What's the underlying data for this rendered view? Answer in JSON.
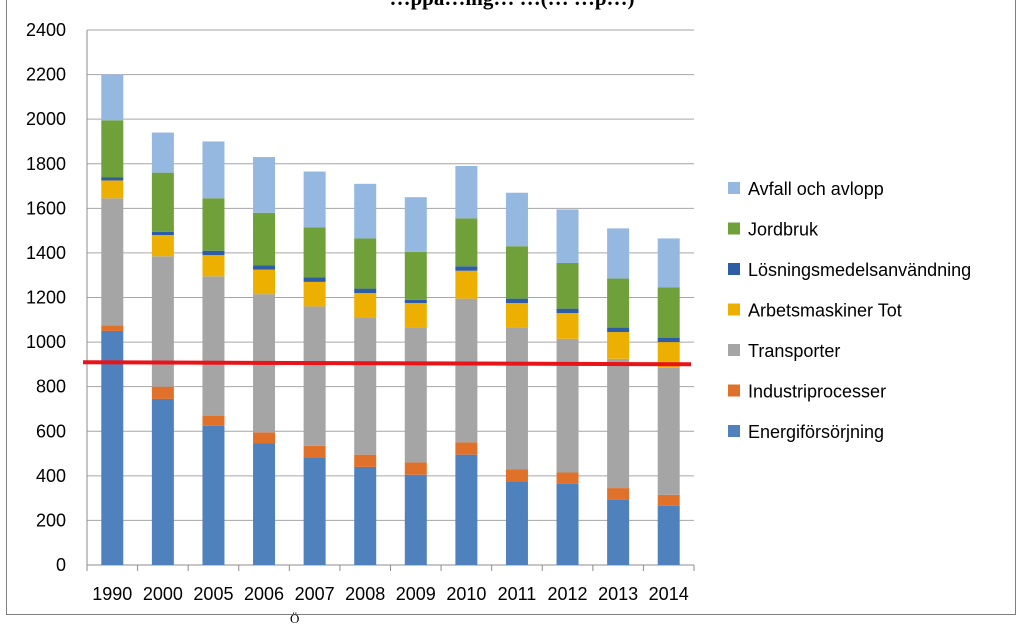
{
  "chart_data": {
    "type": "bar",
    "stacked": true,
    "title": "…ppa…ing… …(… …p…)",
    "footer_fragment": "Ö",
    "categories": [
      "1990",
      "2000",
      "2005",
      "2006",
      "2007",
      "2008",
      "2009",
      "2010",
      "2011",
      "2012",
      "2013",
      "2014"
    ],
    "ylim": [
      0,
      2400
    ],
    "yticks": [
      0,
      200,
      400,
      600,
      800,
      1000,
      1200,
      1400,
      1600,
      1800,
      2000,
      2200,
      2400
    ],
    "grid": true,
    "legend_position": "right",
    "reference_line": {
      "value": 905,
      "color": "#e8141a"
    },
    "series": [
      {
        "name": "Energiförsörjning",
        "color": "#4f81bd",
        "values": [
          1050,
          745,
          625,
          545,
          480,
          440,
          405,
          495,
          375,
          365,
          295,
          265
        ]
      },
      {
        "name": "Industriprocesser",
        "color": "#e0712a",
        "values": [
          25,
          55,
          45,
          50,
          55,
          55,
          55,
          55,
          55,
          50,
          50,
          50
        ]
      },
      {
        "name": "Transporter",
        "color": "#a5a5a5",
        "values": [
          570,
          585,
          625,
          620,
          625,
          615,
          605,
          645,
          635,
          600,
          580,
          570
        ]
      },
      {
        "name": "Arbetsmaskiner Tot",
        "color": "#edb001",
        "values": [
          80,
          95,
          95,
          110,
          110,
          110,
          110,
          125,
          110,
          115,
          120,
          115
        ]
      },
      {
        "name": "Lösningsmedelsanvändning",
        "color": "#2e5da8",
        "values": [
          15,
          15,
          20,
          20,
          20,
          20,
          15,
          20,
          20,
          20,
          20,
          20
        ]
      },
      {
        "name": "Jordbruk",
        "color": "#70a03a",
        "values": [
          255,
          265,
          235,
          235,
          225,
          225,
          215,
          215,
          235,
          205,
          220,
          225
        ]
      },
      {
        "name": "Avfall och avlopp",
        "color": "#94b8e0",
        "values": [
          205,
          180,
          255,
          250,
          250,
          245,
          245,
          235,
          240,
          240,
          225,
          220
        ]
      }
    ]
  }
}
